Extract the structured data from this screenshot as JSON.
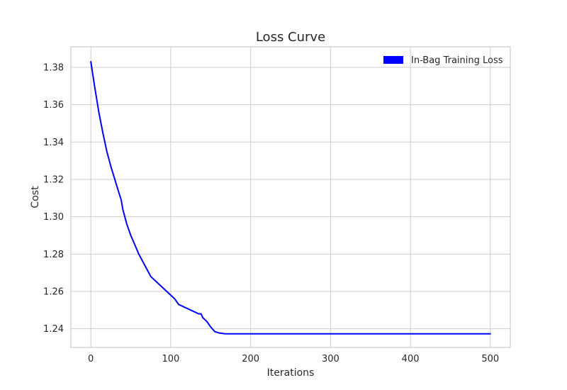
{
  "chart_data": {
    "type": "line",
    "title": "Loss Curve",
    "xlabel": "Iterations",
    "ylabel": "Cost",
    "xlim": [
      -25,
      525
    ],
    "ylim": [
      1.23,
      1.391
    ],
    "xticks": [
      0,
      100,
      200,
      300,
      400,
      500
    ],
    "yticks": [
      1.24,
      1.26,
      1.28,
      1.3,
      1.32,
      1.34,
      1.36,
      1.38
    ],
    "ytick_labels": [
      "1.24",
      "1.26",
      "1.28",
      "1.30",
      "1.32",
      "1.34",
      "1.36",
      "1.38"
    ],
    "grid": true,
    "legend_position": "top-right",
    "series": [
      {
        "name": "In-Bag Training Loss",
        "color": "#0000ff",
        "x": [
          0,
          5,
          10,
          15,
          20,
          25,
          30,
          35,
          38,
          40,
          45,
          50,
          55,
          60,
          65,
          70,
          75,
          80,
          85,
          90,
          95,
          100,
          105,
          110,
          115,
          120,
          125,
          130,
          135,
          138,
          140,
          145,
          150,
          155,
          160,
          165,
          168,
          170,
          200,
          250,
          300,
          350,
          400,
          450,
          500
        ],
        "y": [
          1.383,
          1.369,
          1.356,
          1.345,
          1.335,
          1.327,
          1.32,
          1.313,
          1.309,
          1.304,
          1.296,
          1.29,
          1.285,
          1.28,
          1.276,
          1.272,
          1.268,
          1.266,
          1.264,
          1.262,
          1.26,
          1.258,
          1.256,
          1.253,
          1.252,
          1.251,
          1.25,
          1.249,
          1.248,
          1.248,
          1.246,
          1.244,
          1.241,
          1.2385,
          1.2378,
          1.2375,
          1.2373,
          1.2373,
          1.2373,
          1.2373,
          1.2373,
          1.2373,
          1.2373,
          1.2373,
          1.2373
        ]
      }
    ]
  }
}
